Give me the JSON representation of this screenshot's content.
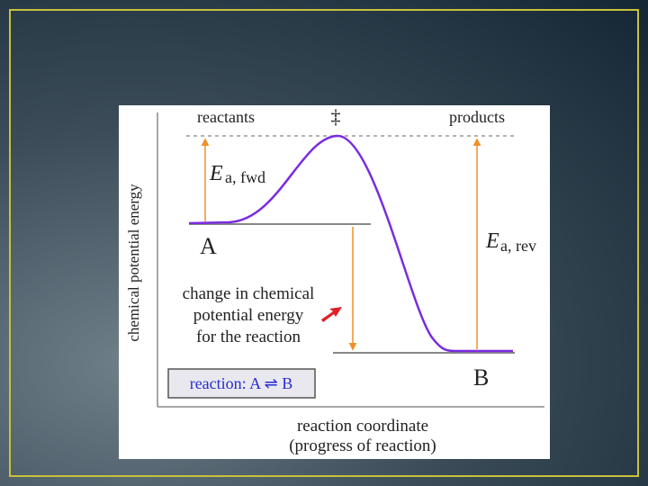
{
  "diagram": {
    "top_labels": {
      "reactants": "reactants",
      "transition": "‡",
      "products": "products"
    },
    "ea_fwd": {
      "symbol": "E",
      "subscript": "a, fwd"
    },
    "ea_rev": {
      "symbol": "E",
      "subscript": "a, rev"
    },
    "state_a": "A",
    "state_b": "B",
    "change_label": [
      "change in chemical",
      "potential energy",
      "for the reaction"
    ],
    "reaction_box": "reaction: A ⇌ B",
    "y_axis_label": "chemical potential energy",
    "x_axis_label": [
      "reaction coordinate",
      "(progress of reaction)"
    ]
  }
}
